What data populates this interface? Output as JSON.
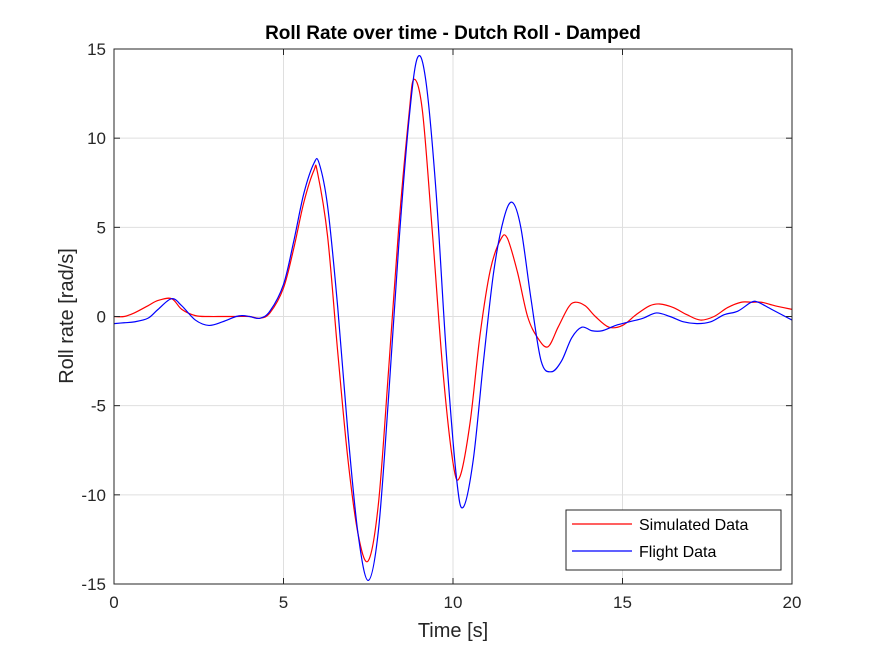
{
  "chart_data": {
    "type": "line",
    "title": "Roll Rate over time - Dutch Roll - Damped",
    "xlabel": "Time [s]",
    "ylabel": "Roll rate [rad/s]",
    "xlim": [
      0,
      20
    ],
    "ylim": [
      -15,
      15
    ],
    "xticks": [
      0,
      5,
      10,
      15,
      20
    ],
    "yticks": [
      -15,
      -10,
      -5,
      0,
      5,
      10,
      15
    ],
    "grid": true,
    "legend_position": "bottom-right",
    "series": [
      {
        "name": "Simulated Data",
        "color": "#ff0000",
        "x": [
          0,
          0.3,
          0.6,
          1.0,
          1.3,
          1.7,
          2.0,
          2.4,
          2.8,
          3.2,
          3.6,
          4.0,
          4.3,
          4.6,
          5.0,
          5.3,
          5.6,
          5.9,
          6.0,
          6.3,
          6.6,
          6.9,
          7.2,
          7.5,
          7.8,
          8.1,
          8.4,
          8.7,
          8.85,
          9.1,
          9.4,
          9.7,
          10.0,
          10.2,
          10.5,
          10.8,
          11.1,
          11.4,
          11.6,
          11.9,
          12.2,
          12.5,
          12.8,
          13.1,
          13.4,
          13.6,
          13.9,
          14.2,
          14.6,
          15.0,
          15.4,
          15.8,
          16.1,
          16.5,
          16.9,
          17.3,
          17.7,
          18.1,
          18.5,
          18.8,
          19.1,
          19.5,
          20.0
        ],
        "values": [
          0,
          0.0,
          0.2,
          0.6,
          0.9,
          1.0,
          0.4,
          0.05,
          0.0,
          0.0,
          0.0,
          0.0,
          -0.1,
          0.2,
          1.6,
          3.8,
          6.4,
          8.2,
          8.1,
          4.5,
          -2.0,
          -8.0,
          -12.2,
          -13.7,
          -10.5,
          -3.0,
          5.0,
          11.3,
          13.3,
          11.5,
          4.5,
          -3.0,
          -8.2,
          -9.0,
          -6.0,
          -1.0,
          2.6,
          4.3,
          4.4,
          2.5,
          0.0,
          -1.2,
          -1.7,
          -0.6,
          0.5,
          0.8,
          0.6,
          0.0,
          -0.6,
          -0.5,
          0.1,
          0.6,
          0.7,
          0.5,
          0.1,
          -0.2,
          0.0,
          0.5,
          0.8,
          0.8,
          0.8,
          0.6,
          0.4
        ]
      },
      {
        "name": "Flight Data",
        "color": "#0000ff",
        "x": [
          0,
          0.3,
          0.6,
          1.0,
          1.3,
          1.7,
          2.0,
          2.4,
          2.8,
          3.2,
          3.6,
          3.8,
          4.0,
          4.3,
          4.6,
          5.0,
          5.3,
          5.6,
          5.9,
          6.05,
          6.3,
          6.6,
          6.9,
          7.2,
          7.5,
          7.8,
          8.1,
          8.4,
          8.7,
          8.95,
          9.2,
          9.5,
          9.8,
          10.1,
          10.3,
          10.6,
          10.9,
          11.2,
          11.5,
          11.75,
          12.0,
          12.3,
          12.6,
          12.9,
          13.2,
          13.5,
          13.8,
          14.1,
          14.4,
          14.8,
          15.2,
          15.6,
          16.0,
          16.4,
          16.8,
          17.2,
          17.6,
          18.0,
          18.4,
          18.8,
          19.0,
          19.4,
          20.0
        ],
        "values": [
          -0.4,
          -0.35,
          -0.3,
          -0.1,
          0.4,
          1.0,
          0.6,
          -0.2,
          -0.5,
          -0.3,
          0.0,
          0.05,
          0.0,
          -0.1,
          0.3,
          1.8,
          4.2,
          6.9,
          8.6,
          8.6,
          6.2,
          0.5,
          -6.5,
          -12.2,
          -14.8,
          -12.0,
          -4.5,
          4.0,
          11.0,
          14.5,
          13.2,
          7.0,
          -2.0,
          -9.0,
          -10.7,
          -8.0,
          -2.5,
          2.5,
          5.5,
          6.4,
          5.0,
          1.0,
          -2.5,
          -3.1,
          -2.5,
          -1.2,
          -0.6,
          -0.8,
          -0.8,
          -0.5,
          -0.3,
          -0.1,
          0.2,
          0.0,
          -0.3,
          -0.4,
          -0.3,
          0.1,
          0.3,
          0.8,
          0.8,
          0.4,
          -0.2
        ]
      }
    ]
  }
}
